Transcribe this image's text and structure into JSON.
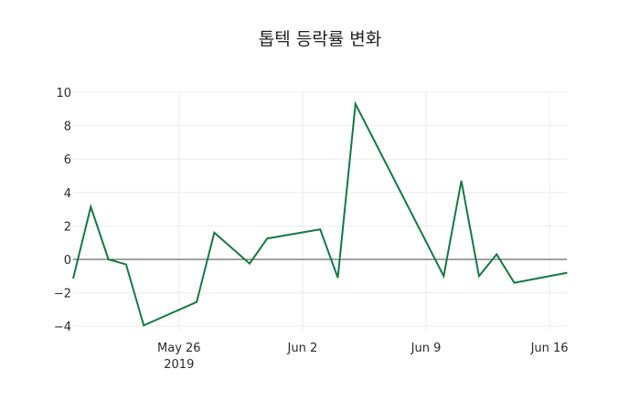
{
  "chart_data": {
    "type": "line",
    "title": "톱텍 등락률 변화",
    "xlabel": "",
    "ylabel": "",
    "ylim": [
      -4.2,
      10
    ],
    "grid": true,
    "legend": null,
    "line_color": "#137a3f",
    "x_ticks": [
      {
        "label": "May 26",
        "sublabel": "2019",
        "date": "2019-05-26"
      },
      {
        "label": "Jun 2",
        "sublabel": "",
        "date": "2019-06-02"
      },
      {
        "label": "Jun 9",
        "sublabel": "",
        "date": "2019-06-09"
      },
      {
        "label": "Jun 16",
        "sublabel": "",
        "date": "2019-06-16"
      }
    ],
    "y_ticks": [
      10,
      8,
      6,
      4,
      2,
      0,
      -2,
      -4
    ],
    "x": [
      "2019-05-20",
      "2019-05-21",
      "2019-05-22",
      "2019-05-23",
      "2019-05-24",
      "2019-05-27",
      "2019-05-28",
      "2019-05-30",
      "2019-05-31",
      "2019-06-03",
      "2019-06-04",
      "2019-06-05",
      "2019-06-10",
      "2019-06-11",
      "2019-06-12",
      "2019-06-13",
      "2019-06-14",
      "2019-06-17"
    ],
    "series": [
      {
        "name": "등락률",
        "values": [
          -1.15,
          3.15,
          0.0,
          -0.3,
          -3.95,
          -2.55,
          1.6,
          -0.25,
          1.25,
          1.8,
          -1.1,
          9.3,
          -1.0,
          4.7,
          -1.0,
          0.3,
          -1.4,
          -0.8
        ]
      }
    ]
  }
}
